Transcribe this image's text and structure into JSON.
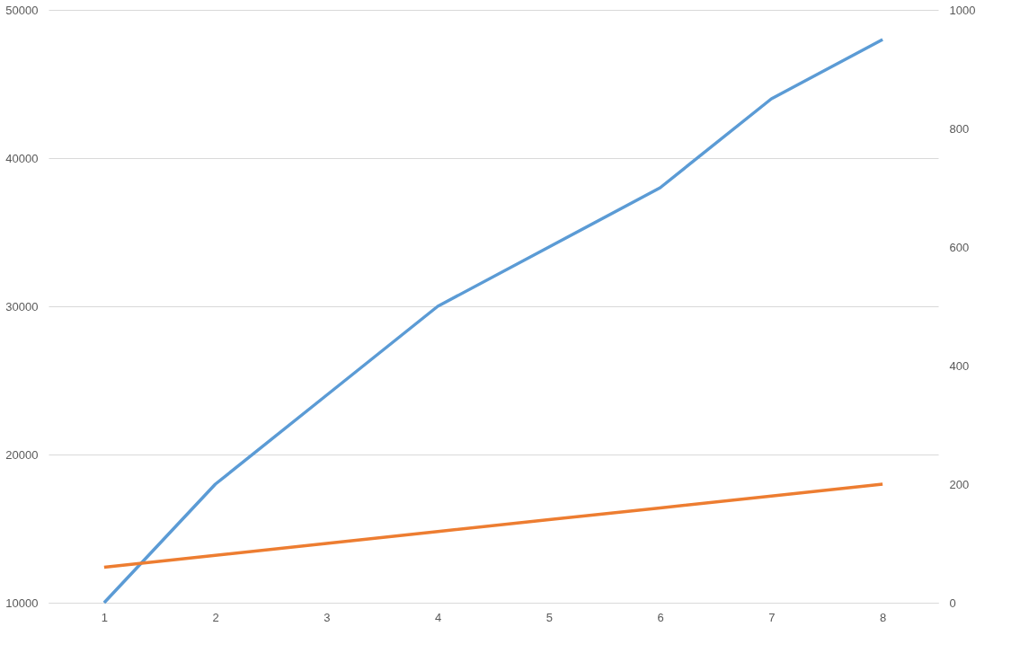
{
  "chart_data": {
    "type": "line",
    "categories": [
      "1",
      "2",
      "3",
      "4",
      "5",
      "6",
      "7",
      "8"
    ],
    "series": [
      {
        "color": "#5b9bd5",
        "values": [
          10000,
          18000,
          24000,
          30000,
          34000,
          38000,
          44000,
          48000
        ]
      },
      {
        "color": "#ed7d31",
        "axis": "y2",
        "values": [
          60,
          80,
          100,
          120,
          140,
          160,
          180,
          200
        ]
      }
    ],
    "ylim": [
      10000,
      50000
    ],
    "yticks": [
      10000,
      20000,
      30000,
      40000,
      50000
    ],
    "y2lim": [
      0,
      1000
    ],
    "y2ticks": [
      0,
      200,
      400,
      600,
      800,
      1000
    ],
    "grid": "y",
    "marker": "none",
    "line_style": "solid"
  }
}
